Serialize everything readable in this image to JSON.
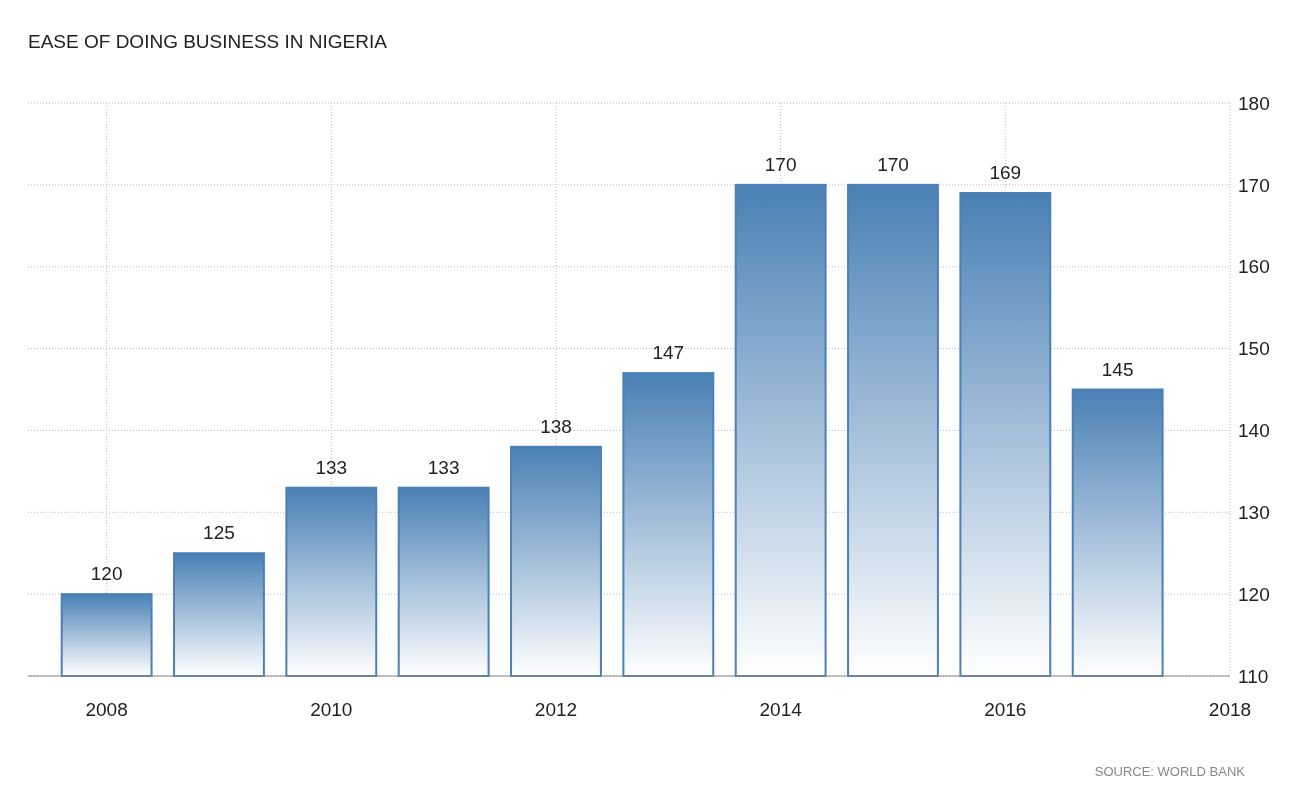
{
  "chart_data": {
    "type": "bar",
    "title": "EASE OF DOING BUSINESS IN NIGERIA",
    "x": [
      2008,
      2009,
      2010,
      2011,
      2012,
      2013,
      2014,
      2015,
      2016,
      2017
    ],
    "values": [
      120,
      125,
      133,
      133,
      138,
      147,
      170,
      170,
      169,
      145
    ],
    "color": "#4a80b5",
    "xlim": [
      2007.3,
      2018
    ],
    "xticks": [
      2008,
      2010,
      2012,
      2014,
      2016,
      2018
    ],
    "ylim": [
      110,
      180
    ],
    "yticks": [
      110,
      120,
      130,
      140,
      150,
      160,
      170,
      180
    ],
    "grid": true,
    "data_labels": true,
    "annotations": [
      "SOURCE: WORLD BANK"
    ]
  }
}
